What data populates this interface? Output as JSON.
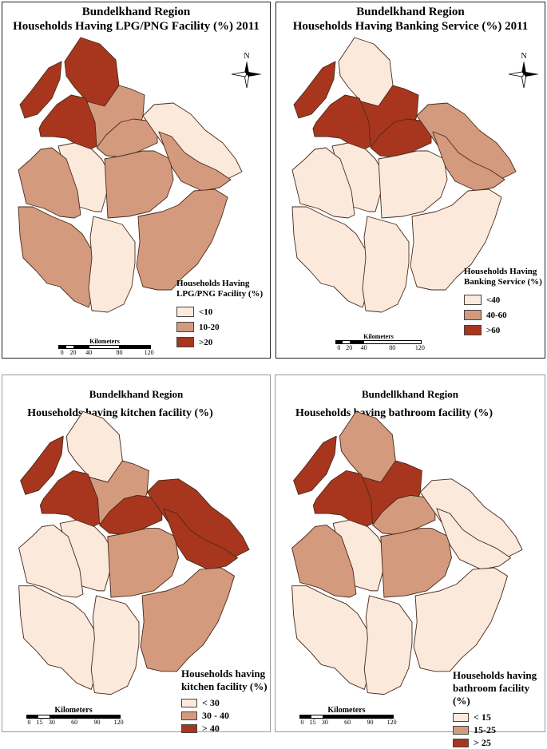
{
  "colors": {
    "low": "#fbe9dc",
    "mid": "#d49a7e",
    "high": "#a8361f",
    "outline": "#4a2a1a"
  },
  "panels": [
    {
      "title_line1": "Bundelkhand Region",
      "title_line2": "Households Having LPG/PNG Facility (%) 2011",
      "legend_title_line1": "Households Having",
      "legend_title_line2": "LPG/PNG Facility (%)",
      "legend": [
        {
          "label": "<10",
          "class": "low"
        },
        {
          "label": "10-20",
          "class": "mid"
        },
        {
          "label": ">20",
          "class": "high"
        }
      ],
      "scale_label": "Kilometers",
      "scale_ticks": [
        "0",
        "20",
        "40",
        "80",
        "120"
      ],
      "north": "N"
    },
    {
      "title_line1": "Bundelkhand Region",
      "title_line2": "Households Having Banking Service (%) 2011",
      "legend_title_line1": "Households Having",
      "legend_title_line2": "Banking Service (%)",
      "legend": [
        {
          "label": "<40",
          "class": "low"
        },
        {
          "label": "40-60",
          "class": "mid"
        },
        {
          "label": ">60",
          "class": "high"
        }
      ],
      "scale_label": "Kilometers",
      "scale_ticks": [
        "0",
        "20",
        "40",
        "80",
        "120"
      ],
      "north": "N"
    },
    {
      "title_line1": "Bundelkhand Region",
      "title_line2": "Households having kitchen facility (%)",
      "legend_title_line1": "Households having",
      "legend_title_line2": "kitchen facility (%)",
      "legend": [
        {
          "label": "< 30",
          "class": "low"
        },
        {
          "label": "30 - 40",
          "class": "mid"
        },
        {
          "label": "> 40",
          "class": "high"
        }
      ],
      "scale_label": "Kilometers",
      "scale_ticks": [
        "0",
        "15",
        "30",
        "60",
        "90",
        "120"
      ]
    },
    {
      "title_line1": "Bundellkhand Region",
      "title_line2": "Households having bathroom facility (%)",
      "legend_title_line1": "Households having",
      "legend_title_line2": "bathroom facility (%)",
      "legend": [
        {
          "label": "< 15",
          "class": "low"
        },
        {
          "label": "15-25",
          "class": "mid"
        },
        {
          "label": "> 25",
          "class": "high"
        }
      ],
      "scale_label": "Kilometers",
      "scale_ticks": [
        "0",
        "15",
        "30",
        "60",
        "90",
        "120"
      ]
    }
  ],
  "maps": [
    {
      "d1": "high",
      "d2": "high",
      "d3": "mid",
      "d4": "high",
      "d5": "mid",
      "d6": "low",
      "d7": "mid",
      "d8": "low",
      "d9": "mid",
      "d10": "mid",
      "d11": "mid",
      "d12": "low",
      "d13": "mid"
    },
    {
      "d1": "high",
      "d2": "low",
      "d3": "high",
      "d4": "high",
      "d5": "high",
      "d6": "low",
      "d7": "low",
      "d8": "mid",
      "d9": "mid",
      "d10": "low",
      "d11": "low",
      "d12": "low",
      "d13": "low"
    },
    {
      "d1": "high",
      "d2": "low",
      "d3": "mid",
      "d4": "high",
      "d5": "high",
      "d6": "low",
      "d7": "mid",
      "d8": "high",
      "d9": "high",
      "d10": "low",
      "d11": "low",
      "d12": "low",
      "d13": "mid"
    },
    {
      "d1": "high",
      "d2": "mid",
      "d3": "high",
      "d4": "high",
      "d5": "mid",
      "d6": "low",
      "d7": "mid",
      "d8": "low",
      "d9": "low",
      "d10": "mid",
      "d11": "low",
      "d12": "low",
      "d13": "low"
    }
  ]
}
